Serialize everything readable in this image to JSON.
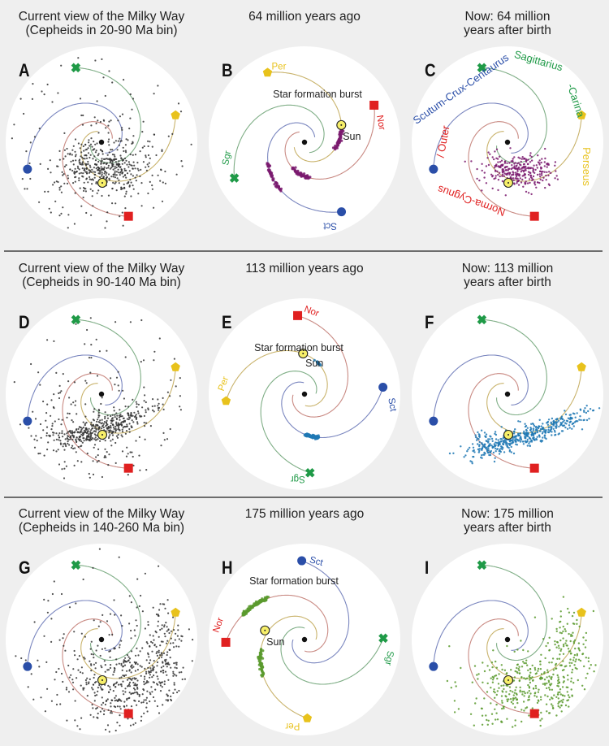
{
  "colors": {
    "background": "#efefef",
    "disk": "#ffffff",
    "sgr": "#1f9a47",
    "per": "#e8c21c",
    "nor": "#e02020",
    "sct": "#2a4ea8",
    "sun_fill": "#f7ef6a",
    "cepheids_grey": "#333333",
    "burst_purple": "#7a1a6e",
    "burst_blue": "#1f78b4",
    "burst_green": "#5a9a2e"
  },
  "arm_names": {
    "sgr_short": "Sgr",
    "per_short": "Per",
    "nor_short": "Nor",
    "sct_short": "Sct",
    "sgr_full": "Sagittarius-Carina",
    "per_full": "Perseus",
    "nor_full": "Norma-Cygnus / Outer",
    "sct_full": "Scutum-Crux-Centaurus"
  },
  "common": {
    "burst_label": "Star formation burst",
    "sun_label": "Sun"
  },
  "rows": [
    {
      "panels": [
        {
          "id": "A",
          "title_line1": "Current view of the Milky Way",
          "title_line2": "(Cepheids in 20-90 Ma bin)",
          "kind": "current",
          "dots": "grey-dense",
          "age_bin": "20-90 Ma"
        },
        {
          "id": "B",
          "title_line1": "64 million years ago",
          "title_line2": "",
          "kind": "past",
          "burst": "purple",
          "time_ago_myr": 64
        },
        {
          "id": "C",
          "title_line1": "Now: 64 million",
          "title_line2": "years after birth",
          "kind": "now",
          "dots": "purple",
          "time_after_birth_myr": 64
        }
      ]
    },
    {
      "panels": [
        {
          "id": "D",
          "title_line1": "Current view of the Milky Way",
          "title_line2": "(Cepheids in 90-140 Ma bin)",
          "kind": "current",
          "dots": "grey-band",
          "age_bin": "90-140 Ma"
        },
        {
          "id": "E",
          "title_line1": "113 million years ago",
          "title_line2": "",
          "kind": "past",
          "burst": "blue",
          "time_ago_myr": 113
        },
        {
          "id": "F",
          "title_line1": "Now: 113 million",
          "title_line2": "years after birth",
          "kind": "now",
          "dots": "blue",
          "time_after_birth_myr": 113
        }
      ]
    },
    {
      "panels": [
        {
          "id": "G",
          "title_line1": "Current view of the Milky Way",
          "title_line2": "(Cepheids in 140-260 Ma bin)",
          "kind": "current",
          "dots": "grey-wide",
          "age_bin": "140-260 Ma"
        },
        {
          "id": "H",
          "title_line1": "175 million years ago",
          "title_line2": "",
          "kind": "past",
          "burst": "green",
          "time_ago_myr": 175
        },
        {
          "id": "I",
          "title_line1": "Now: 175 million",
          "title_line2": "years after birth",
          "kind": "now",
          "dots": "green",
          "time_after_birth_myr": 175
        }
      ]
    }
  ]
}
